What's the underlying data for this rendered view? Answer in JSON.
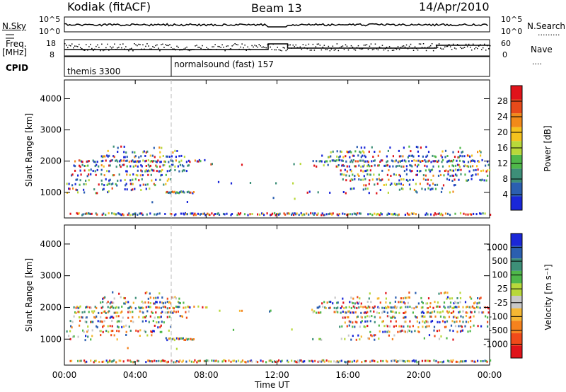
{
  "header": {
    "station": "Kodiak (fitACF)",
    "beam": "Beam 13",
    "date": "14/Apr/2010"
  },
  "panels": {
    "nsky_label": "N.Sky",
    "nsearch_label": "N.Search",
    "nsky_ticks": [
      "10^5",
      "10^0"
    ],
    "nsearch_ticks": [
      "10^5",
      "10^0"
    ],
    "freq_label_top": "Freq.",
    "freq_label_unit": "[MHz]",
    "freq_ticks": [
      "18",
      "8"
    ],
    "nave_label": "Nave",
    "nave_ticks": [
      "60",
      "0"
    ],
    "cpid_label": "CPID",
    "cpid_entries": [
      "themis 3300",
      "normalsound (fast) 157"
    ]
  },
  "colors": {
    "power": [
      "#1a27d8",
      "#2b5fb0",
      "#3d8f78",
      "#4fb84a",
      "#b8d83a",
      "#f5c21e",
      "#f28a1a",
      "#e84a1a",
      "#e0131a"
    ],
    "velocity": [
      "#e0131a",
      "#f04a1a",
      "#f5821e",
      "#f5b833",
      "#c8c8c8",
      "#b8d83a",
      "#4fb84a",
      "#3d8f78",
      "#2b5fb0",
      "#1a27d8"
    ]
  },
  "chart_data": [
    {
      "type": "heatmap",
      "title": "Power",
      "ylabel": "Slant Range [km]",
      "xlabel": "Time UT",
      "x_ticks": [
        "00:00",
        "04:00",
        "08:00",
        "12:00",
        "16:00",
        "20:00",
        "00:00"
      ],
      "y_ticks": [
        "1000",
        "2000",
        "3000",
        "4000"
      ],
      "xlim_hours": [
        0,
        24
      ],
      "ylim_km": [
        180,
        4600
      ],
      "colorbar_label": "Power [dB]",
      "colorbar_ticks": [
        "4",
        "8",
        "12",
        "16",
        "20",
        "24",
        "28"
      ],
      "colorbar_range": [
        0,
        30
      ]
    },
    {
      "type": "heatmap",
      "title": "Velocity",
      "ylabel": "Slant Range [km]",
      "xlabel": "Time UT",
      "x_ticks": [
        "00:00",
        "04:00",
        "08:00",
        "12:00",
        "16:00",
        "20:00",
        "00:00"
      ],
      "y_ticks": [
        "1000",
        "2000",
        "3000",
        "4000"
      ],
      "xlim_hours": [
        0,
        24
      ],
      "ylim_km": [
        180,
        4600
      ],
      "colorbar_label": "Velocity [m s⁻¹]",
      "colorbar_ticks": [
        "-1000",
        "-500",
        "-100",
        "-25",
        "25",
        "100",
        "500",
        "1000"
      ]
    }
  ]
}
